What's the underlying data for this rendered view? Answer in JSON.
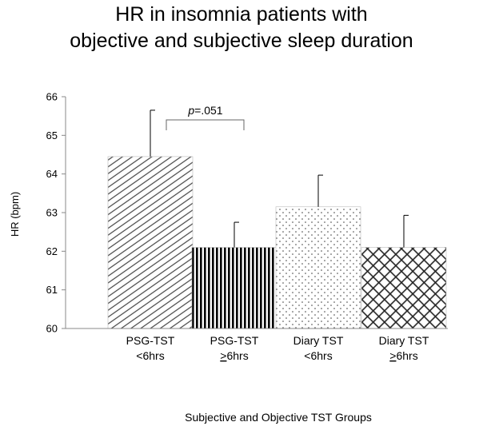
{
  "chart_data": {
    "type": "bar",
    "title": [
      "HR in insomnia patients with",
      "objective and subjective sleep duration"
    ],
    "xlabel": "Subjective and Objective TST Groups",
    "ylabel": "HR (bpm)",
    "ylim": [
      60,
      66
    ],
    "yticks": [
      "60",
      "61",
      "62",
      "63",
      "64",
      "65",
      "66"
    ],
    "grid": false,
    "legend": "none",
    "categories": [
      {
        "line1": "PSG-TST",
        "line2_prefix": "<",
        "line2_rest": "6hrs",
        "underline_prefix": false
      },
      {
        "line1": "PSG-TST",
        "line2_prefix": ">",
        "line2_rest": "6hrs",
        "underline_prefix": true
      },
      {
        "line1": "Diary TST",
        "line2_prefix": "<",
        "line2_rest": "6hrs",
        "underline_prefix": false
      },
      {
        "line1": "Diary TST",
        "line2_prefix": ">",
        "line2_rest": "6hrs",
        "underline_prefix": true
      }
    ],
    "values": [
      64.45,
      62.1,
      63.15,
      62.1
    ],
    "error_upper": [
      65.65,
      62.75,
      63.97,
      62.93
    ],
    "patterns": [
      "diagonal-hatch",
      "vertical-lines",
      "dots",
      "crosshatch"
    ],
    "annotation": {
      "italic": "p",
      "rest": "=.051",
      "between": [
        0,
        1
      ]
    }
  }
}
